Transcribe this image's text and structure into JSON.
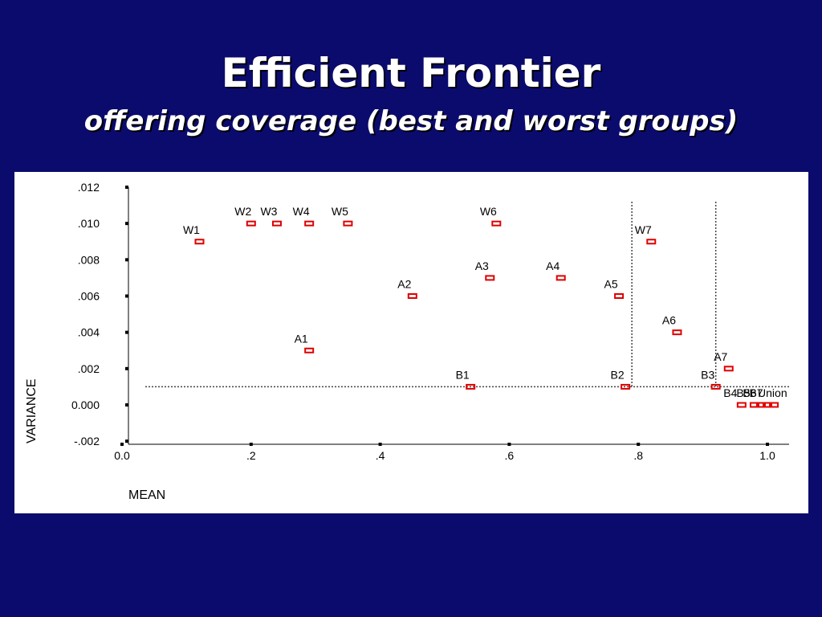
{
  "slide": {
    "title": "Efficient Frontier",
    "subtitle": "offering coverage (best and worst groups)"
  },
  "colors": {
    "background": "#0b0b6e",
    "panel": "#ffffff",
    "marker": "#e00000",
    "text": "#ffffff"
  },
  "chart_data": {
    "type": "scatter",
    "xlabel": "MEAN",
    "ylabel": "VARIANCE",
    "xlim": [
      0.0,
      1.02
    ],
    "ylim": [
      -0.002,
      0.012
    ],
    "x_ticks": [
      {
        "value": 0.0,
        "label": "0.0"
      },
      {
        "value": 0.2,
        "label": ".2"
      },
      {
        "value": 0.4,
        "label": ".4"
      },
      {
        "value": 0.6,
        "label": ".6"
      },
      {
        "value": 0.8,
        "label": ".8"
      },
      {
        "value": 1.0,
        "label": "1.0"
      }
    ],
    "y_ticks": [
      {
        "value": 0.012,
        "label": ".012"
      },
      {
        "value": 0.01,
        "label": ".010"
      },
      {
        "value": 0.008,
        "label": ".008"
      },
      {
        "value": 0.006,
        "label": ".006"
      },
      {
        "value": 0.004,
        "label": ".004"
      },
      {
        "value": 0.002,
        "label": ".002"
      },
      {
        "value": 0.0,
        "label": "0.000"
      },
      {
        "value": -0.002,
        "label": "-.002"
      }
    ],
    "grid": false,
    "points": [
      {
        "label": "W1",
        "x": 0.12,
        "y": 0.009
      },
      {
        "label": "W2",
        "x": 0.2,
        "y": 0.01
      },
      {
        "label": "W3",
        "x": 0.24,
        "y": 0.01
      },
      {
        "label": "W4",
        "x": 0.29,
        "y": 0.01
      },
      {
        "label": "W5",
        "x": 0.35,
        "y": 0.01
      },
      {
        "label": "W6",
        "x": 0.58,
        "y": 0.01
      },
      {
        "label": "W7",
        "x": 0.82,
        "y": 0.009
      },
      {
        "label": "A1",
        "x": 0.29,
        "y": 0.003
      },
      {
        "label": "A2",
        "x": 0.45,
        "y": 0.006
      },
      {
        "label": "A3",
        "x": 0.57,
        "y": 0.007
      },
      {
        "label": "A4",
        "x": 0.68,
        "y": 0.007
      },
      {
        "label": "A5",
        "x": 0.77,
        "y": 0.006
      },
      {
        "label": "A6",
        "x": 0.86,
        "y": 0.004
      },
      {
        "label": "A7",
        "x": 0.94,
        "y": 0.002
      },
      {
        "label": "B1",
        "x": 0.54,
        "y": 0.001
      },
      {
        "label": "B2",
        "x": 0.78,
        "y": 0.001
      },
      {
        "label": "B3",
        "x": 0.92,
        "y": 0.001
      },
      {
        "label": "B4",
        "x": 0.96,
        "y": 0.0
      },
      {
        "label": "B5",
        "x": 0.98,
        "y": 0.0
      },
      {
        "label": "B6",
        "x": 0.99,
        "y": 0.0
      },
      {
        "label": "B7",
        "x": 1.0,
        "y": 0.0
      },
      {
        "label": "Union",
        "x": 1.01,
        "y": 0.0
      }
    ],
    "reference_lines": [
      {
        "orientation": "horizontal",
        "value": 0.001,
        "style": "dotted"
      },
      {
        "orientation": "vertical",
        "value": 0.79,
        "style": "dotted"
      },
      {
        "orientation": "vertical",
        "value": 0.92,
        "style": "dotted"
      }
    ]
  }
}
